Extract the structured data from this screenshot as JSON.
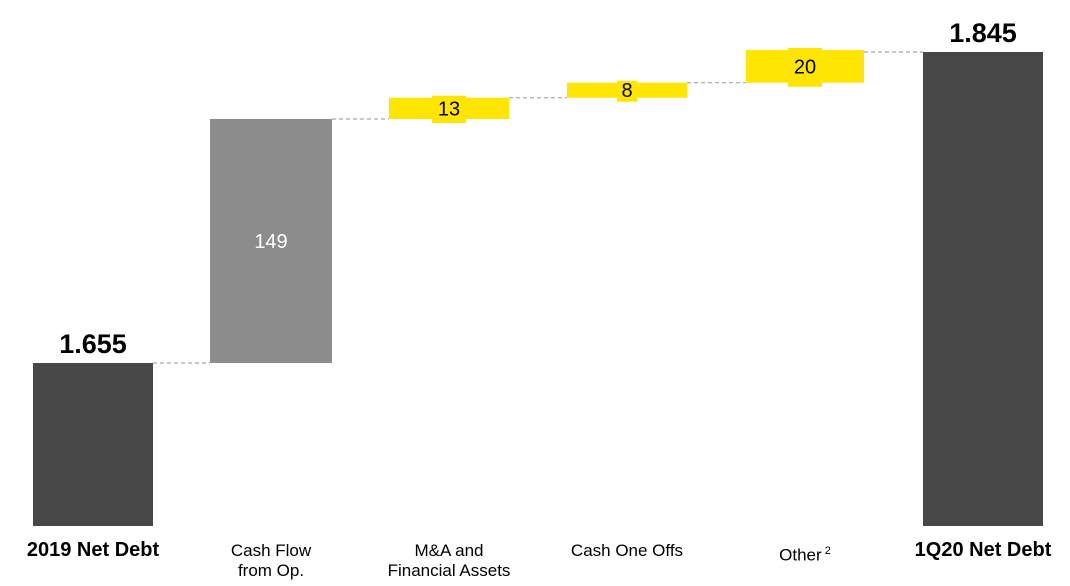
{
  "chart_data": {
    "type": "bar",
    "subtype": "waterfall",
    "title": "",
    "categories": [
      {
        "lines": [
          "2019 Net Debt"
        ],
        "bold": true
      },
      {
        "lines": [
          "Cash Flow",
          "from Op."
        ],
        "bold": false
      },
      {
        "lines": [
          "M&A and",
          "Financial Assets"
        ],
        "bold": false
      },
      {
        "lines": [
          "Cash One Offs"
        ],
        "bold": false
      },
      {
        "lines": [
          "Other"
        ],
        "sup": "2",
        "bold": false
      },
      {
        "lines": [
          "1Q20 Net Debt"
        ],
        "bold": true
      }
    ],
    "bars": [
      {
        "kind": "total",
        "value": 1655,
        "label": "1.655"
      },
      {
        "kind": "delta",
        "value": 149,
        "label": "149"
      },
      {
        "kind": "delta",
        "value": 13,
        "label": "13"
      },
      {
        "kind": "delta",
        "value": 8,
        "label": "8"
      },
      {
        "kind": "delta",
        "value": 20,
        "label": "20"
      },
      {
        "kind": "total",
        "value": 1845,
        "label": "1.845"
      }
    ],
    "colors": {
      "total": "#474747",
      "cashflow": "#8c8c8c",
      "other_deltas": "#ffe500",
      "connector": "#a6a6a6",
      "delta_label_on_gray": "#ffffff",
      "delta_label_on_yellow": "#000000"
    }
  }
}
